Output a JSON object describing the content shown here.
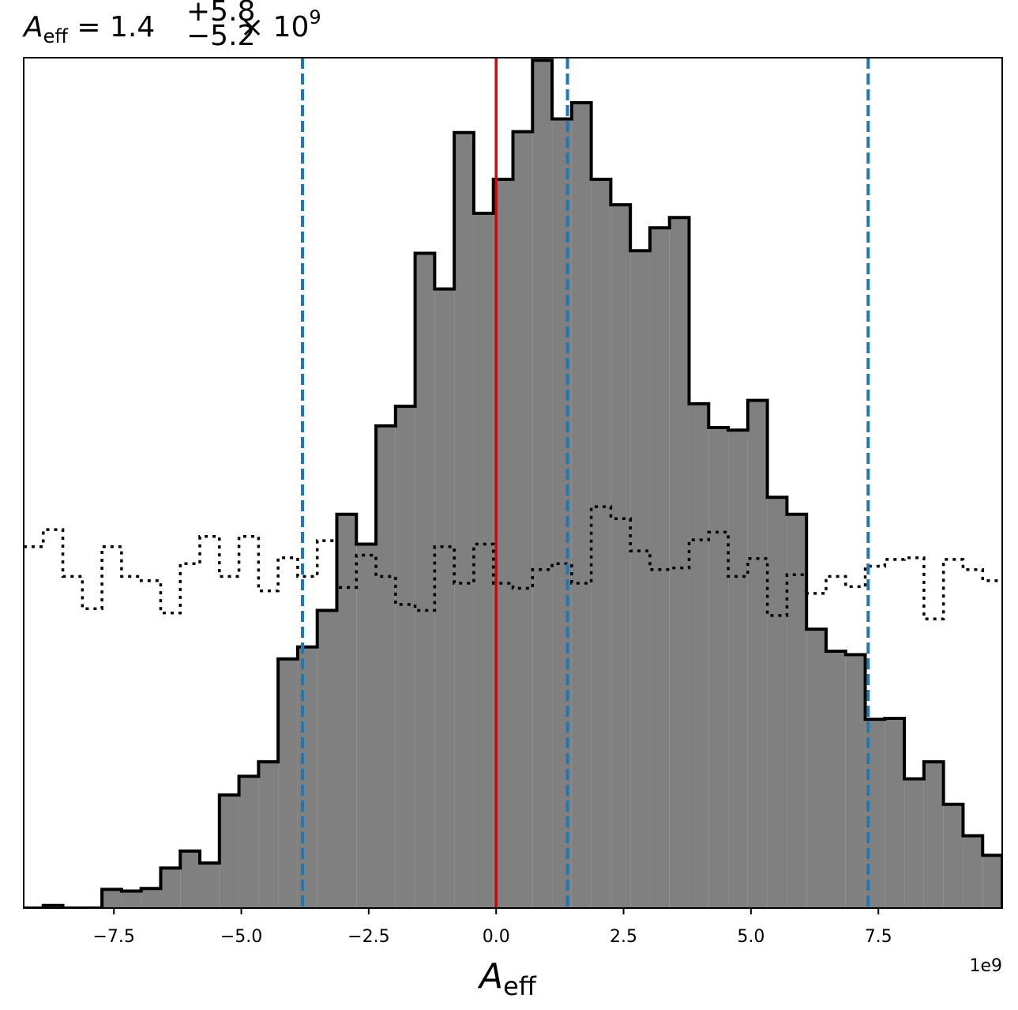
{
  "chart_data": {
    "type": "histogram",
    "title": {
      "symbol": "A",
      "subscript": "eff",
      "value": "1.4",
      "upper": "+5.8",
      "lower": "−5.2",
      "multiplier": "× 10",
      "exponent": "9"
    },
    "xlabel": {
      "symbol": "A",
      "subscript": "eff"
    },
    "offset_text": "1e9",
    "xlim": [
      -9.27,
      9.93
    ],
    "ylim": [
      0,
      1
    ],
    "xticks": [
      -7.5,
      -5.0,
      -2.5,
      0.0,
      2.5,
      5.0,
      7.5
    ],
    "xtick_labels": [
      "−7.5",
      "−5.0",
      "−2.5",
      "0.0",
      "2.5",
      "5.0",
      "7.5"
    ],
    "yticks_shown": false,
    "grid": false,
    "colors": {
      "fill": "#808080",
      "edge": "#000000",
      "truth_line": "#e00000",
      "quantile_lines": "#1f77b4",
      "prior": "#000000"
    },
    "truth_value": 0.0,
    "quantile_values": [
      -3.8,
      1.4,
      7.3
    ],
    "posterior_hist": {
      "bin_edges": [
        -9.27,
        -8.886,
        -8.502,
        -8.118,
        -7.734,
        -7.35,
        -6.966,
        -6.582,
        -6.198,
        -5.814,
        -5.43,
        -5.046,
        -4.662,
        -4.278,
        -3.894,
        -3.51,
        -3.126,
        -2.742,
        -2.358,
        -1.974,
        -1.59,
        -1.206,
        -0.822,
        -0.438,
        -0.054,
        0.33,
        0.714,
        1.098,
        1.482,
        1.866,
        2.25,
        2.634,
        3.018,
        3.402,
        3.786,
        4.17,
        4.554,
        4.938,
        5.322,
        5.706,
        6.09,
        6.474,
        6.858,
        7.242,
        7.626,
        8.01,
        8.394,
        8.778,
        9.162,
        9.546,
        9.93
      ],
      "counts": [
        0,
        0.003,
        0,
        0,
        0.022,
        0.02,
        0.023,
        0.047,
        0.067,
        0.053,
        0.133,
        0.155,
        0.172,
        0.293,
        0.307,
        0.35,
        0.463,
        0.428,
        0.567,
        0.59,
        0.77,
        0.728,
        0.912,
        0.817,
        0.857,
        0.913,
        0.997,
        0.928,
        0.947,
        0.857,
        0.827,
        0.773,
        0.8,
        0.812,
        0.593,
        0.565,
        0.562,
        0.597,
        0.483,
        0.463,
        0.328,
        0.302,
        0.298,
        0.222,
        0.223,
        0.152,
        0.172,
        0.122,
        0.085,
        0.062
      ]
    },
    "prior_hist": {
      "bin_edges": [
        -9.27,
        -8.886,
        -8.502,
        -8.118,
        -7.734,
        -7.35,
        -6.966,
        -6.582,
        -6.198,
        -5.814,
        -5.43,
        -5.046,
        -4.662,
        -4.278,
        -3.894,
        -3.51,
        -3.126,
        -2.742,
        -2.358,
        -1.974,
        -1.59,
        -1.206,
        -0.822,
        -0.438,
        -0.054,
        0.33,
        0.714,
        1.098,
        1.482,
        1.866,
        2.25,
        2.634,
        3.018,
        3.402,
        3.786,
        4.17,
        4.554,
        4.938,
        5.322,
        5.706,
        6.09,
        6.474,
        6.858,
        7.242,
        7.626,
        8.01,
        8.394,
        8.778,
        9.162,
        9.546,
        9.93
      ],
      "counts": [
        0.425,
        0.445,
        0.39,
        0.352,
        0.425,
        0.39,
        0.385,
        0.347,
        0.405,
        0.437,
        0.39,
        0.437,
        0.373,
        0.412,
        0.39,
        0.432,
        0.377,
        0.415,
        0.39,
        0.357,
        0.35,
        0.425,
        0.382,
        0.428,
        0.382,
        0.376,
        0.398,
        0.405,
        0.382,
        0.472,
        0.458,
        0.42,
        0.398,
        0.4,
        0.433,
        0.442,
        0.39,
        0.411,
        0.344,
        0.392,
        0.37,
        0.39,
        0.378,
        0.402,
        0.41,
        0.412,
        0.34,
        0.41,
        0.398,
        0.385
      ]
    }
  }
}
